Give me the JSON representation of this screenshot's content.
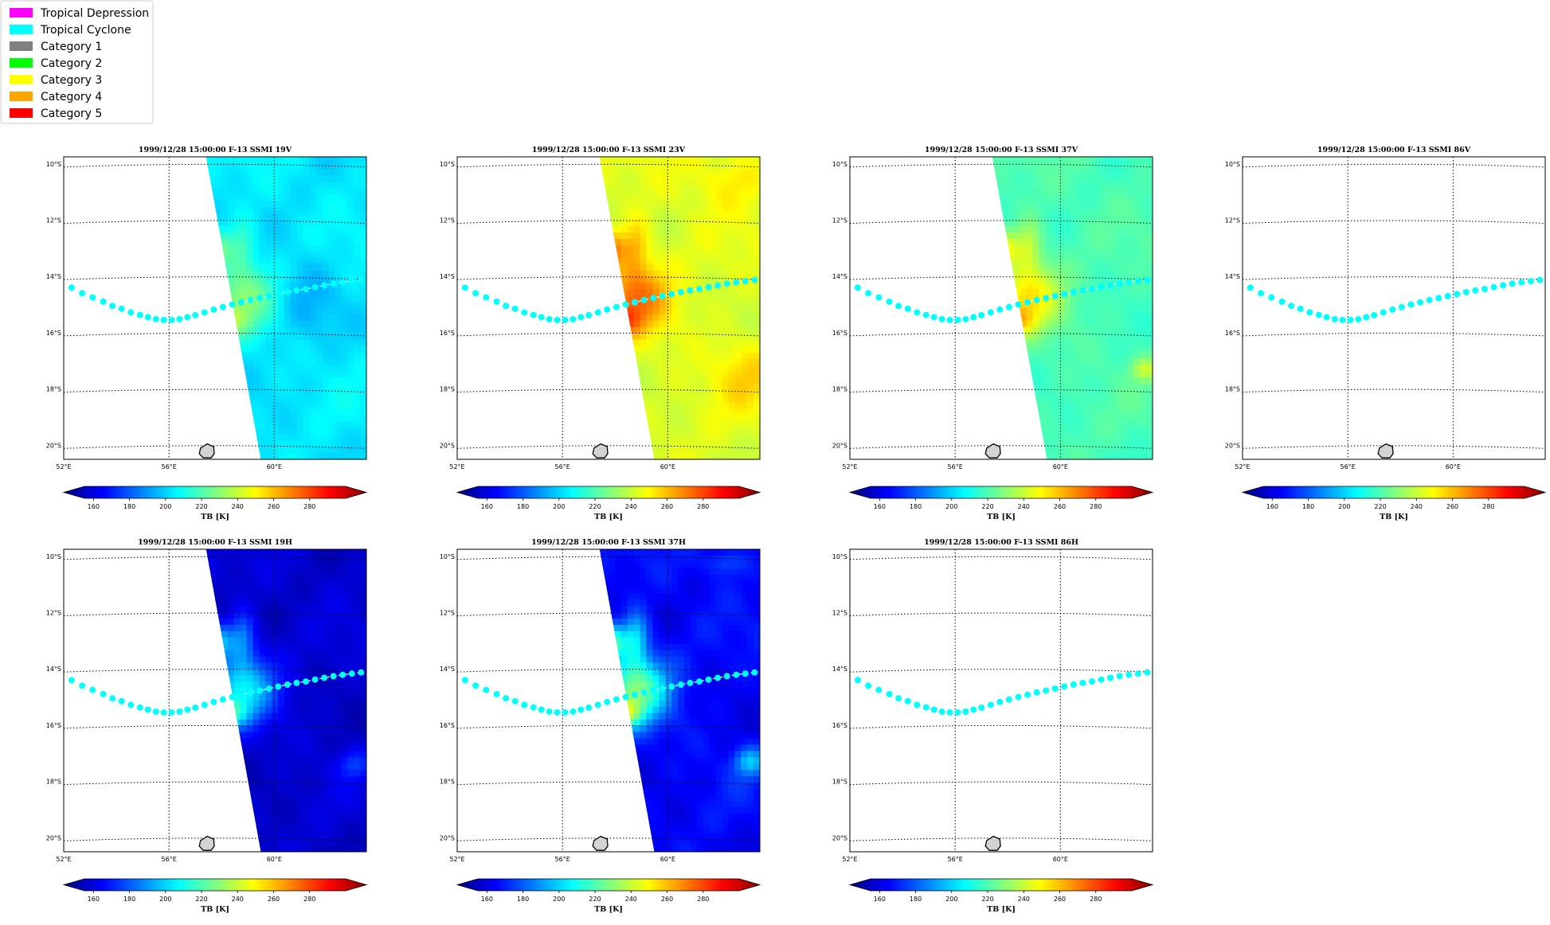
{
  "legend": {
    "items": [
      {
        "label": "Tropical Depression",
        "color": "#ff00ff"
      },
      {
        "label": "Tropical Cyclone",
        "color": "#00ffff"
      },
      {
        "label": "Category 1",
        "color": "#808080"
      },
      {
        "label": "Category 2",
        "color": "#00ff00"
      },
      {
        "label": "Category 3",
        "color": "#ffff00"
      },
      {
        "label": "Category 4",
        "color": "#ffa500"
      },
      {
        "label": "Category 5",
        "color": "#ff0000"
      }
    ]
  },
  "chart_data": [
    {
      "type": "heatmap",
      "title": "1999/12/28 15:00:00  F-13 SSMI 19V",
      "channel": "19V",
      "field": "mid",
      "swath": true
    },
    {
      "type": "heatmap",
      "title": "1999/12/28 15:00:00  F-13 SSMI 23V",
      "channel": "23V",
      "field": "warm",
      "swath": true
    },
    {
      "type": "heatmap",
      "title": "1999/12/28 15:00:00  F-13 SSMI 37V",
      "channel": "37V",
      "field": "green",
      "swath": true
    },
    {
      "type": "heatmap",
      "title": "1999/12/28 15:00:00  F-13 SSMI 86V",
      "channel": "86V",
      "field": "none",
      "swath": false
    },
    {
      "type": "heatmap",
      "title": "1999/12/28 15:00:00  F-13 SSMI 19H",
      "channel": "19H",
      "field": "cold",
      "swath": true
    },
    {
      "type": "heatmap",
      "title": "1999/12/28 15:00:00  F-13 SSMI 37H",
      "channel": "37H",
      "field": "cold37",
      "swath": true
    },
    {
      "type": "heatmap",
      "title": "1999/12/28 15:00:00  F-13 SSMI 86H",
      "channel": "86H",
      "field": "none",
      "swath": false
    }
  ],
  "axes": {
    "lat_ticks": [
      "10°S",
      "12°S",
      "14°S",
      "16°S",
      "18°S",
      "20°S"
    ],
    "lat_values": [
      -10,
      -12,
      -14,
      -16,
      -18,
      -20
    ],
    "lon_ticks": [
      "52°E",
      "56°E",
      "60°E"
    ],
    "lon_values": [
      52,
      56,
      60
    ],
    "lon_range": [
      52,
      63.5
    ],
    "lat_range": [
      -20.5,
      -9.75
    ]
  },
  "colorbar": {
    "label": "TB [K]",
    "ticks": [
      "160",
      "180",
      "200",
      "220",
      "240",
      "260",
      "280"
    ],
    "tick_values": [
      160,
      180,
      200,
      220,
      240,
      260,
      280
    ],
    "range": [
      153,
      305
    ],
    "colormap": "jet",
    "extend": "both"
  },
  "track": {
    "color": "#00ffff",
    "category": "Tropical Cyclone",
    "points": [
      [
        52.3,
        -14.4
      ],
      [
        52.7,
        -14.6
      ],
      [
        53.1,
        -14.75
      ],
      [
        53.5,
        -14.9
      ],
      [
        53.85,
        -15.05
      ],
      [
        54.2,
        -15.15
      ],
      [
        54.55,
        -15.28
      ],
      [
        54.9,
        -15.37
      ],
      [
        55.2,
        -15.45
      ],
      [
        55.5,
        -15.52
      ],
      [
        55.8,
        -15.55
      ],
      [
        56.1,
        -15.55
      ],
      [
        56.4,
        -15.52
      ],
      [
        56.7,
        -15.45
      ],
      [
        57.0,
        -15.38
      ],
      [
        57.35,
        -15.28
      ],
      [
        57.7,
        -15.18
      ],
      [
        58.05,
        -15.09
      ],
      [
        58.4,
        -15.0
      ],
      [
        58.75,
        -14.92
      ],
      [
        59.1,
        -14.84
      ],
      [
        59.45,
        -14.77
      ],
      [
        59.8,
        -14.7
      ],
      [
        60.15,
        -14.63
      ],
      [
        60.5,
        -14.56
      ],
      [
        60.85,
        -14.5
      ],
      [
        61.2,
        -14.45
      ],
      [
        61.55,
        -14.38
      ],
      [
        61.9,
        -14.32
      ],
      [
        62.25,
        -14.26
      ],
      [
        62.6,
        -14.21
      ],
      [
        62.95,
        -14.17
      ],
      [
        63.3,
        -14.13
      ]
    ]
  },
  "island": {
    "points": [
      [
        57.2,
        -20.1
      ],
      [
        57.45,
        -19.95
      ],
      [
        57.7,
        -20.05
      ],
      [
        57.72,
        -20.3
      ],
      [
        57.6,
        -20.45
      ],
      [
        57.3,
        -20.45
      ],
      [
        57.15,
        -20.3
      ]
    ]
  }
}
